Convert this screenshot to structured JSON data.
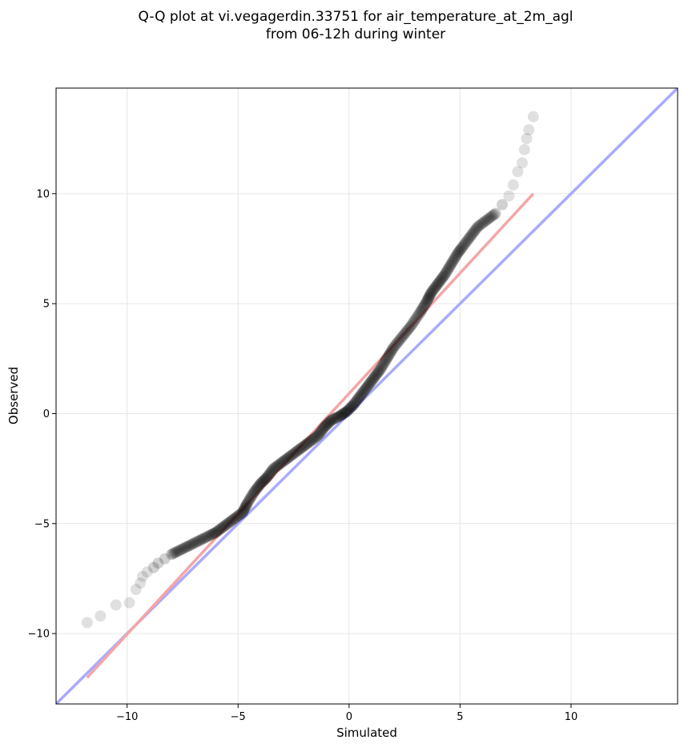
{
  "chart_data": {
    "type": "scatter",
    "title_lines": [
      "Q-Q plot at vi.vegagerdin.33751 for air_temperature_at_2m_agl",
      "from 06-12h during winter"
    ],
    "xlabel": "Simulated",
    "ylabel": "Observed",
    "xlim": [
      -13.2,
      14.8
    ],
    "ylim": [
      -13.2,
      14.8
    ],
    "xticks": [
      -10,
      -5,
      0,
      5,
      10
    ],
    "yticks": [
      -10,
      -5,
      0,
      5,
      10
    ],
    "xtick_labels": [
      "−10",
      "−5",
      "0",
      "5",
      "10"
    ],
    "ytick_labels": [
      "−10",
      "−5",
      "0",
      "5",
      "10"
    ],
    "grid": true,
    "identity_line": {
      "color": "#aaaaff",
      "from": [
        -13.2,
        -13.2
      ],
      "to": [
        14.8,
        14.8
      ]
    },
    "fit_line": {
      "color": "#f4a6a6",
      "from": [
        -11.8,
        -12.0
      ],
      "to": [
        8.3,
        10.0
      ]
    },
    "point_color": "#000000",
    "quantiles": [
      [
        -11.8,
        -9.5
      ],
      [
        -11.2,
        -9.2
      ],
      [
        -10.5,
        -8.7
      ],
      [
        -9.9,
        -8.6
      ],
      [
        -9.6,
        -8.0
      ],
      [
        -9.4,
        -7.7
      ],
      [
        -9.3,
        -7.4
      ],
      [
        -9.1,
        -7.2
      ],
      [
        -8.8,
        -7.0
      ],
      [
        -8.6,
        -6.8
      ],
      [
        -8.3,
        -6.6
      ],
      [
        -8.0,
        -6.4
      ],
      [
        -7.6,
        -6.2
      ],
      [
        -7.2,
        -6.0
      ],
      [
        -6.8,
        -5.8
      ],
      [
        -6.4,
        -5.6
      ],
      [
        -6.0,
        -5.4
      ],
      [
        -5.6,
        -5.1
      ],
      [
        -5.2,
        -4.8
      ],
      [
        -4.8,
        -4.5
      ],
      [
        -4.6,
        -4.1
      ],
      [
        -4.3,
        -3.6
      ],
      [
        -4.0,
        -3.2
      ],
      [
        -3.7,
        -2.9
      ],
      [
        -3.4,
        -2.5
      ],
      [
        -3.0,
        -2.2
      ],
      [
        -2.6,
        -1.9
      ],
      [
        -2.2,
        -1.6
      ],
      [
        -1.8,
        -1.3
      ],
      [
        -1.4,
        -1.0
      ],
      [
        -1.1,
        -0.6
      ],
      [
        -0.8,
        -0.3
      ],
      [
        -0.4,
        -0.1
      ],
      [
        -0.1,
        0.1
      ],
      [
        0.2,
        0.4
      ],
      [
        0.5,
        0.8
      ],
      [
        0.8,
        1.2
      ],
      [
        1.1,
        1.6
      ],
      [
        1.4,
        2.0
      ],
      [
        1.7,
        2.5
      ],
      [
        2.0,
        3.0
      ],
      [
        2.4,
        3.5
      ],
      [
        2.8,
        4.0
      ],
      [
        3.2,
        4.6
      ],
      [
        3.5,
        5.1
      ],
      [
        3.7,
        5.5
      ],
      [
        4.0,
        5.9
      ],
      [
        4.3,
        6.3
      ],
      [
        4.6,
        6.8
      ],
      [
        4.9,
        7.3
      ],
      [
        5.2,
        7.7
      ],
      [
        5.5,
        8.1
      ],
      [
        5.8,
        8.5
      ],
      [
        6.2,
        8.8
      ],
      [
        6.6,
        9.1
      ],
      [
        6.9,
        9.5
      ],
      [
        7.2,
        9.9
      ],
      [
        7.4,
        10.4
      ],
      [
        7.6,
        11.0
      ],
      [
        7.8,
        11.4
      ],
      [
        7.9,
        12.0
      ],
      [
        8.0,
        12.5
      ],
      [
        8.1,
        12.9
      ],
      [
        8.3,
        13.5
      ]
    ]
  }
}
